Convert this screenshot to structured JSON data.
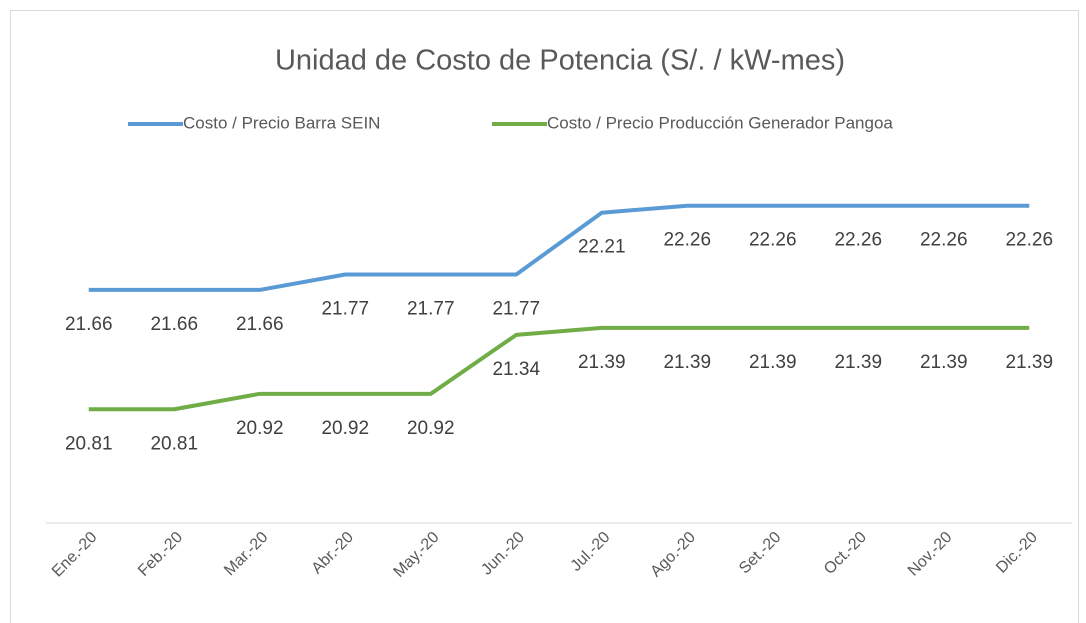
{
  "chart_data": {
    "type": "line",
    "title": "Unidad de Costo de Potencia (S/. / kW-mes)",
    "categories": [
      "Ene.-20",
      "Feb.-20",
      "Mar.-20",
      "Abr.-20",
      "May.-20",
      "Jun.-20",
      "Jul.-20",
      "Ago.-20",
      "Set.-20",
      "Oct.-20",
      "Nov.-20",
      "Dic.-20"
    ],
    "series": [
      {
        "name": "Costo / Precio Barra SEIN",
        "color": "#5b9bd5",
        "values": [
          21.66,
          21.66,
          21.66,
          21.77,
          21.77,
          21.77,
          22.21,
          22.26,
          22.26,
          22.26,
          22.26,
          22.26
        ]
      },
      {
        "name": "Costo / Precio Producción Generador Pangoa",
        "color": "#70ad47",
        "values": [
          20.81,
          20.81,
          20.92,
          20.92,
          20.92,
          21.34,
          21.39,
          21.39,
          21.39,
          21.39,
          21.39,
          21.39
        ]
      }
    ],
    "ylim": [
      20,
      22.5
    ],
    "legend": "top"
  }
}
